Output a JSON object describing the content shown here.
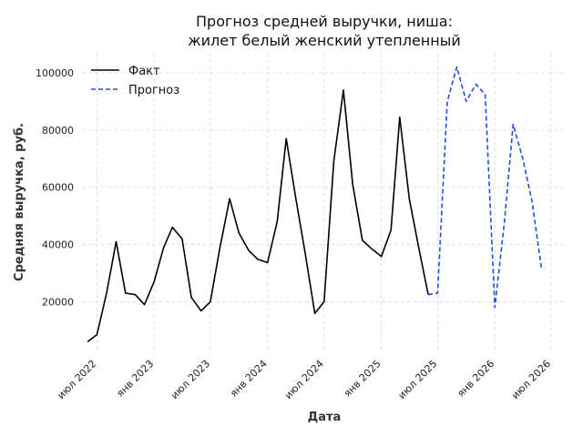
{
  "chart_data": {
    "type": "line",
    "title": "Прогноз средней выручки, ниша:",
    "subtitle": "жилет белый женский утепленный",
    "xlabel": "Дата",
    "ylabel": "Средняя выручка, руб.",
    "xlim": [
      "2022-05-14",
      "2026-08-20"
    ],
    "ylim": [
      2000,
      107000
    ],
    "yticks": [
      20000,
      40000,
      60000,
      80000,
      100000
    ],
    "xticks": [
      {
        "date": "2022-07-01",
        "label": "июл 2022"
      },
      {
        "date": "2023-01-01",
        "label": "янв 2023"
      },
      {
        "date": "2023-07-01",
        "label": "июл 2023"
      },
      {
        "date": "2024-01-01",
        "label": "янв 2024"
      },
      {
        "date": "2024-07-01",
        "label": "июл 2024"
      },
      {
        "date": "2025-01-01",
        "label": "янв 2025"
      },
      {
        "date": "2025-07-01",
        "label": "июл 2025"
      },
      {
        "date": "2026-01-01",
        "label": "янв 2026"
      },
      {
        "date": "2026-07-01",
        "label": "июл 2026"
      }
    ],
    "grid": true,
    "legend_position": "top-left",
    "series": [
      {
        "name": "Факт",
        "color": "#000000",
        "style": "solid",
        "points": [
          {
            "x": "2022-06-01",
            "y": 6000
          },
          {
            "x": "2022-07-01",
            "y": 8500
          },
          {
            "x": "2022-08-01",
            "y": 23000
          },
          {
            "x": "2022-09-01",
            "y": 41000
          },
          {
            "x": "2022-10-01",
            "y": 23000
          },
          {
            "x": "2022-11-01",
            "y": 22500
          },
          {
            "x": "2022-12-01",
            "y": 19000
          },
          {
            "x": "2023-01-01",
            "y": 27000
          },
          {
            "x": "2023-02-01",
            "y": 39000
          },
          {
            "x": "2023-03-01",
            "y": 46000
          },
          {
            "x": "2023-04-01",
            "y": 42000
          },
          {
            "x": "2023-05-01",
            "y": 21500
          },
          {
            "x": "2023-06-01",
            "y": 16800
          },
          {
            "x": "2023-07-01",
            "y": 20000
          },
          {
            "x": "2023-08-01",
            "y": 39000
          },
          {
            "x": "2023-09-01",
            "y": 56000
          },
          {
            "x": "2023-10-01",
            "y": 44000
          },
          {
            "x": "2023-11-01",
            "y": 38000
          },
          {
            "x": "2023-12-01",
            "y": 34800
          },
          {
            "x": "2024-01-01",
            "y": 33700
          },
          {
            "x": "2024-02-01",
            "y": 48000
          },
          {
            "x": "2024-03-01",
            "y": 77000
          },
          {
            "x": "2024-04-01",
            "y": 56000
          },
          {
            "x": "2024-05-01",
            "y": 37000
          },
          {
            "x": "2024-06-01",
            "y": 15900
          },
          {
            "x": "2024-07-01",
            "y": 20000
          },
          {
            "x": "2024-08-01",
            "y": 69000
          },
          {
            "x": "2024-09-01",
            "y": 94000
          },
          {
            "x": "2024-10-01",
            "y": 61000
          },
          {
            "x": "2024-11-01",
            "y": 41500
          },
          {
            "x": "2024-12-01",
            "y": 38500
          },
          {
            "x": "2025-01-01",
            "y": 35800
          },
          {
            "x": "2025-02-01",
            "y": 45000
          },
          {
            "x": "2025-03-01",
            "y": 84500
          },
          {
            "x": "2025-04-01",
            "y": 56000
          },
          {
            "x": "2025-05-01",
            "y": 39000
          },
          {
            "x": "2025-06-01",
            "y": 22500
          }
        ]
      },
      {
        "name": "Прогноз",
        "color": "#1f4fd8",
        "style": "dashed",
        "points": [
          {
            "x": "2025-06-01",
            "y": 22500
          },
          {
            "x": "2025-07-01",
            "y": 23000
          },
          {
            "x": "2025-08-01",
            "y": 90000
          },
          {
            "x": "2025-09-01",
            "y": 102000
          },
          {
            "x": "2025-10-01",
            "y": 90000
          },
          {
            "x": "2025-11-01",
            "y": 96000
          },
          {
            "x": "2025-12-01",
            "y": 92500
          },
          {
            "x": "2026-01-01",
            "y": 18000
          },
          {
            "x": "2026-02-01",
            "y": 48000
          },
          {
            "x": "2026-03-01",
            "y": 82000
          },
          {
            "x": "2026-04-01",
            "y": 70000
          },
          {
            "x": "2026-05-01",
            "y": 55000
          },
          {
            "x": "2026-06-01",
            "y": 31000
          }
        ]
      }
    ]
  }
}
